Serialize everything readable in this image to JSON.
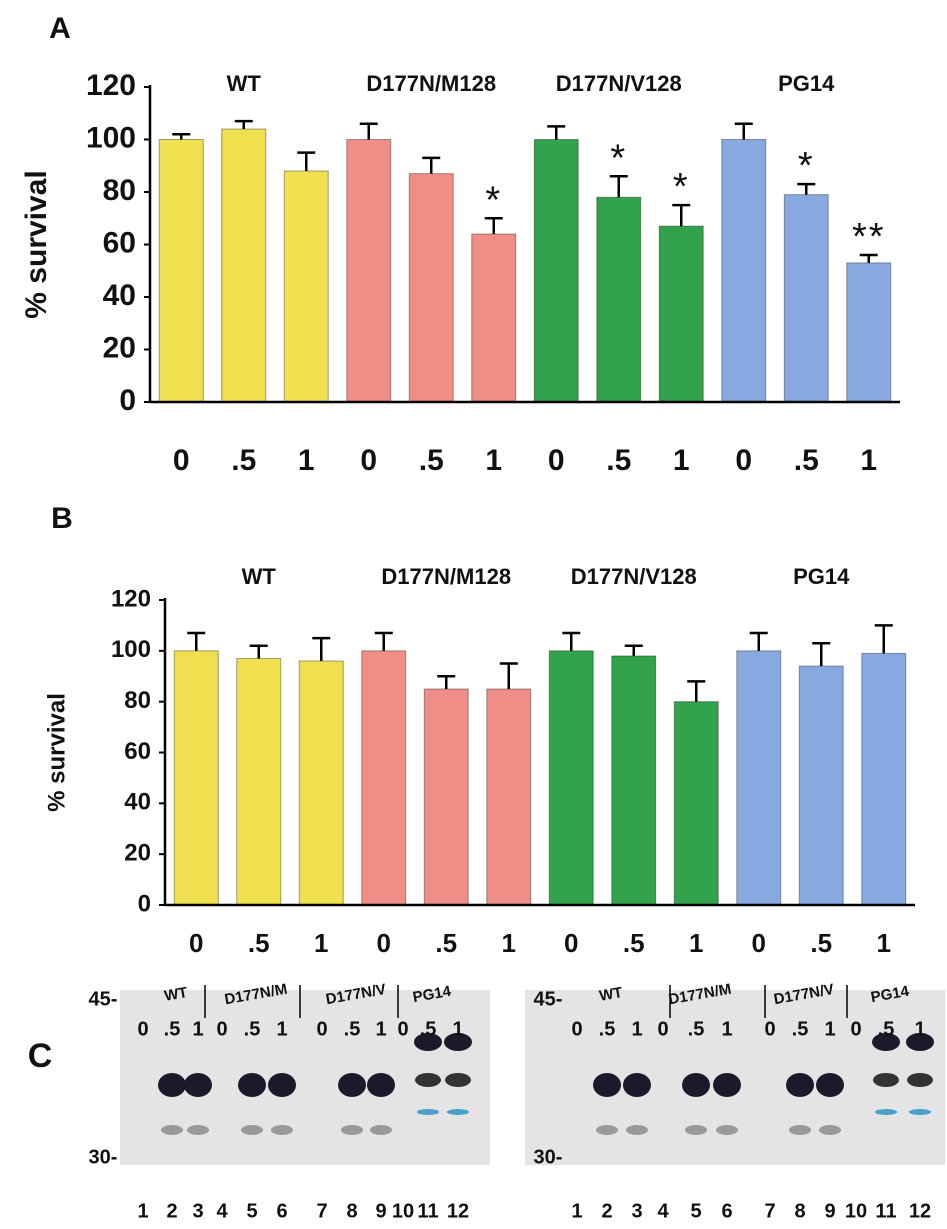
{
  "chart_data": [
    {
      "type": "bar",
      "panel": "A",
      "ylabel": "% survival",
      "groups": [
        {
          "name": "WT",
          "color": "#f0df4e"
        },
        {
          "name": "D177N/M128",
          "color": "#ee8e86"
        },
        {
          "name": "D177N/V128",
          "color": "#33a24c"
        },
        {
          "name": "PG14",
          "color": "#88a9e0"
        }
      ],
      "categories": [
        "0",
        ".5",
        "1",
        "0",
        ".5",
        "1",
        "0",
        ".5",
        "1",
        "0",
        ".5",
        "1"
      ],
      "values": [
        100,
        104,
        88,
        100,
        87,
        64,
        100,
        78,
        67,
        100,
        79,
        53
      ],
      "errors": [
        2,
        3,
        7,
        6,
        6,
        6,
        5,
        8,
        8,
        6,
        4,
        3
      ],
      "annotations": [
        null,
        null,
        null,
        null,
        null,
        "*",
        null,
        "*",
        "*",
        null,
        "*",
        "**"
      ],
      "ylim": [
        0,
        120
      ],
      "yticks": [
        0,
        20,
        40,
        60,
        80,
        100,
        120
      ]
    },
    {
      "type": "bar",
      "panel": "B",
      "ylabel": "% survival",
      "groups": [
        {
          "name": "WT",
          "color": "#f0df4e"
        },
        {
          "name": "D177N/M128",
          "color": "#ee8e86"
        },
        {
          "name": "D177N/V128",
          "color": "#33a24c"
        },
        {
          "name": "PG14",
          "color": "#88a9e0"
        }
      ],
      "categories": [
        "0",
        ".5",
        "1",
        "0",
        ".5",
        "1",
        "0",
        ".5",
        "1",
        "0",
        ".5",
        "1"
      ],
      "values": [
        100,
        97,
        96,
        100,
        85,
        85,
        100,
        98,
        80,
        100,
        94,
        99
      ],
      "errors": [
        7,
        5,
        9,
        7,
        5,
        10,
        7,
        4,
        8,
        7,
        9,
        11
      ],
      "ylim": [
        0,
        120
      ],
      "yticks": [
        0,
        20,
        40,
        60,
        80,
        100,
        120
      ]
    }
  ],
  "blot_panel": {
    "panel": "C",
    "blots": [
      {
        "groups": [
          "WT",
          "D177N/M",
          "D177N/V",
          "PG14"
        ],
        "doses": [
          "0",
          ".5",
          "1",
          "0",
          ".5",
          "1",
          "0",
          ".5",
          "1",
          "0",
          ".5",
          "1"
        ],
        "markers": [
          "45-",
          "30-"
        ],
        "lanes": [
          "1",
          "2",
          "3",
          "4",
          "5",
          "6",
          "7",
          "8",
          "9",
          "10",
          "11",
          "12"
        ]
      },
      {
        "groups": [
          "WT",
          "D177N/M",
          "D177N/V",
          "PG14"
        ],
        "doses": [
          "0",
          ".5",
          "1",
          "0",
          ".5",
          "1",
          "0",
          ".5",
          "1",
          "0",
          ".5",
          "1"
        ],
        "markers": [
          "45-",
          "30-"
        ],
        "lanes": [
          "1",
          "2",
          "3",
          "4",
          "5",
          "6",
          "7",
          "8",
          "9",
          "10",
          "11",
          "12"
        ]
      }
    ]
  }
}
